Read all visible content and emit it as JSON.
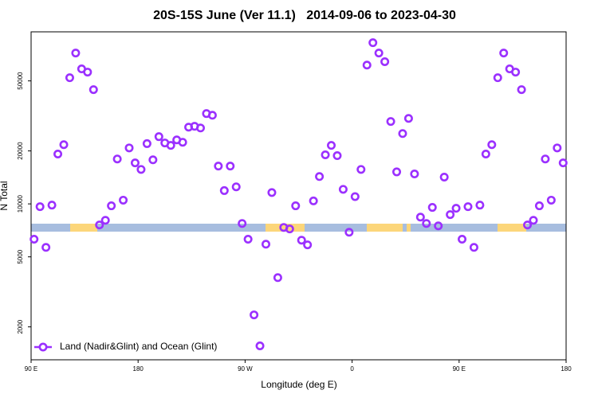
{
  "chart_data": {
    "type": "scatter",
    "title": "20S-15S June (Ver 11.1)   2014-09-06 to 2023-04-30",
    "xlabel": "Longitude (deg E)",
    "ylabel": "N Total",
    "x": [
      92.5,
      97.5,
      102.5,
      107.5,
      112.5,
      117.5,
      122.5,
      127.5,
      132.5,
      137.5,
      142.5,
      147.5,
      152.5,
      157.5,
      162.5,
      167.5,
      172.5,
      177.5,
      182.5,
      187.5,
      192.5,
      197.5,
      202.5,
      207.5,
      212.5,
      217.5,
      222.5,
      227.5,
      232.5,
      237.5,
      242.5,
      247.5,
      252.5,
      257.5,
      262.5,
      267.5,
      272.5,
      277.5,
      282.5,
      287.5,
      292.5,
      297.5,
      302.5,
      307.5,
      312.5,
      317.5,
      322.5,
      327.5,
      332.5,
      337.5,
      342.5,
      347.5,
      352.5,
      357.5,
      362.5,
      367.5,
      372.5,
      377.5,
      382.5,
      387.5,
      392.5,
      397.5,
      402.5,
      407.5,
      412.5,
      417.5,
      422.5,
      427.5,
      432.5,
      437.5,
      442.5,
      447.5,
      452.5,
      457.5,
      462.5,
      467.5,
      472.5,
      477.5,
      482.5,
      487.5,
      492.5,
      497.5,
      502.5,
      507.5,
      512.5,
      517.5,
      522.5,
      527.5,
      532.5,
      537.5
    ],
    "series": [
      {
        "name": "Land (Nadir&Glint) and Ocean (Glint)",
        "color": "#9b30ff",
        "values": [
          6300,
          9640,
          5660,
          9840,
          19200,
          21700,
          52100,
          72000,
          58500,
          56100,
          44600,
          7590,
          8070,
          9750,
          18000,
          10500,
          20800,
          17100,
          15700,
          22000,
          17800,
          24100,
          22200,
          21500,
          23100,
          22400,
          27300,
          27600,
          27000,
          32600,
          31900,
          16400,
          11900,
          16400,
          12500,
          7740,
          6300,
          2340,
          1560,
          5900,
          11600,
          3810,
          7350,
          7200,
          9750,
          6220,
          5850,
          10400,
          14300,
          19000,
          21500,
          18800,
          12100,
          6900,
          11000,
          15700,
          61500,
          82400,
          72000,
          64300,
          29400,
          15200,
          25100,
          30600,
          14800,
          8410,
          7740,
          9550,
          7500,
          14200,
          8690,
          9440,
          6300,
          9640,
          5660,
          9840,
          19200,
          21700,
          52100,
          72000,
          58500,
          56100,
          44600,
          7590,
          8070,
          9750,
          18000,
          10500,
          20800,
          17100
        ]
      }
    ],
    "xlim": [
      90,
      540
    ],
    "ylim": [
      1300,
      95000
    ],
    "yscale": "log",
    "xticks": [
      {
        "value": 90,
        "label": "90 E"
      },
      180,
      {
        "value": 270,
        "label": "90 W"
      },
      {
        "value": 360,
        "label": "0"
      },
      {
        "value": 450,
        "label": "90 E"
      },
      {
        "value": 540,
        "label": "180"
      }
    ],
    "yticks": [
      2000,
      5000,
      10000,
      20000,
      50000
    ],
    "legend": "lower left"
  }
}
